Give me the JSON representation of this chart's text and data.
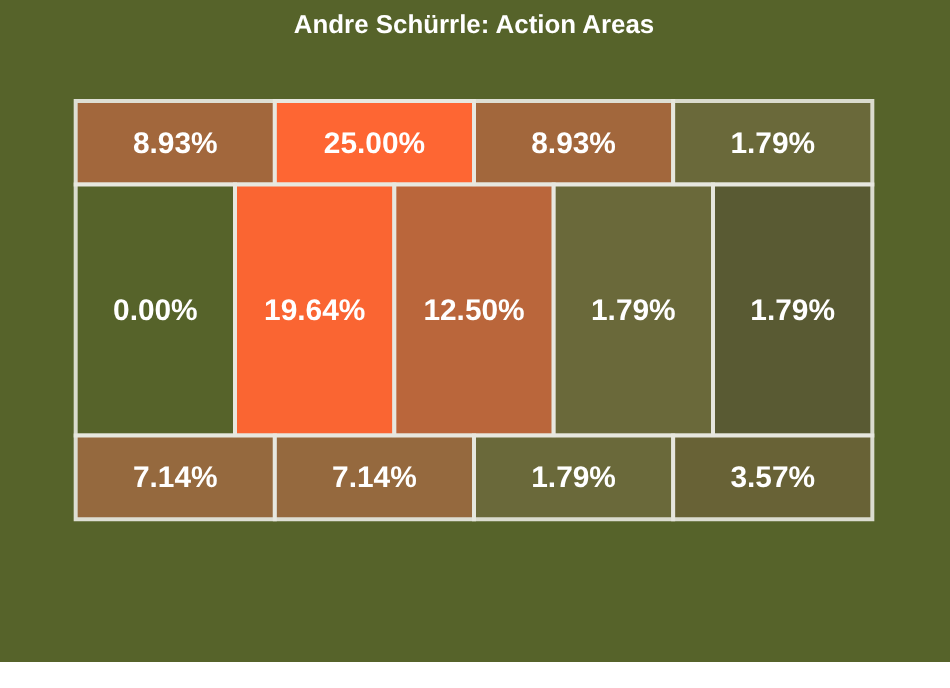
{
  "chart_data": {
    "type": "other",
    "title": "Andre Schürrle: Action Areas",
    "values": [
      8.93,
      25.0,
      8.93,
      1.79,
      0.0,
      19.64,
      12.5,
      1.79,
      1.79,
      7.14,
      7.14,
      1.79,
      3.57
    ],
    "value_labels": [
      "8.93%",
      "25.00%",
      "8.93%",
      "1.79%",
      "0.00%",
      "19.64%",
      "12.50%",
      "1.79%",
      "1.79%",
      "7.14%",
      "7.14%",
      "1.79%",
      "3.57%"
    ],
    "colors": [
      "#a8683e",
      "#fe6633",
      "#a8683e",
      "#6d6a3c",
      "#56632a",
      "#fe6633",
      "#c0673c",
      "#6d6a3c",
      "#5a5a34",
      "#9a6a40",
      "#9a6a40",
      "#6d6a3c",
      "#6a6238"
    ]
  }
}
